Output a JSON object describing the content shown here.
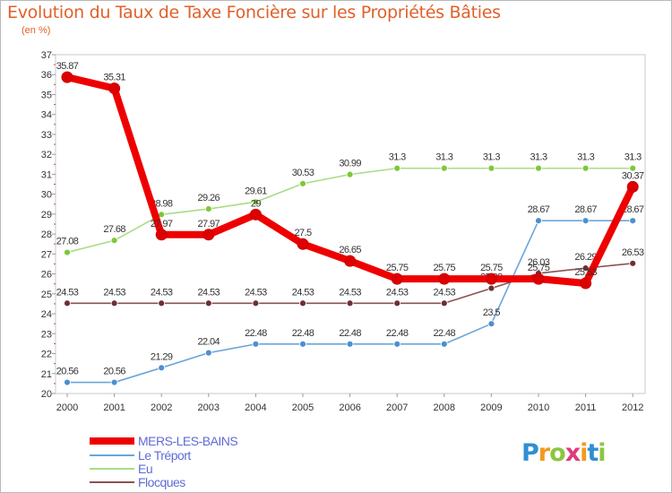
{
  "title": "Evolution du Taux de Taxe Foncière sur les Propriétés Bâties",
  "unit_label": "(en %)",
  "logo": {
    "letters": [
      "P",
      "r",
      "o",
      "x",
      "i",
      "t",
      "i"
    ],
    "colors": [
      "#2f8fd1",
      "#f29a1f",
      "#8cc63f",
      "#e13b7a",
      "#f29a1f",
      "#2f8fd1",
      "#8cc63f"
    ]
  },
  "chart_data": {
    "type": "line",
    "title": "Evolution du Taux de Taxe Foncière sur les Propriétés Bâties",
    "ylabel": "(en %)",
    "xlabel": "",
    "x": [
      "2000",
      "2001",
      "2002",
      "2003",
      "2004",
      "2005",
      "2006",
      "2007",
      "2008",
      "2009",
      "2010",
      "2011",
      "2012"
    ],
    "ylim": [
      20,
      37
    ],
    "yticks": [
      "20",
      "21",
      "22",
      "23",
      "24",
      "25",
      "26",
      "27",
      "28",
      "29",
      "30",
      "31",
      "32",
      "33",
      "34",
      "35",
      "36",
      "37"
    ],
    "grid": false,
    "series": [
      {
        "name": "Le Tréport",
        "color": "#6aa6d8",
        "marker": "#4c8fd0",
        "values": [
          20.56,
          20.56,
          21.29,
          22.04,
          22.48,
          22.48,
          22.48,
          22.48,
          22.48,
          23.5,
          28.67,
          28.67,
          28.67
        ],
        "labels": [
          "20.56",
          "20.56",
          "21.29",
          "22.04",
          "22.48",
          "22.48",
          "22.48",
          "22.48",
          "22.48",
          "23.5",
          "28.67",
          "28.67",
          "28.67"
        ]
      },
      {
        "name": "Eu",
        "color": "#a8dd85",
        "marker": "#7ec73a",
        "values": [
          27.08,
          27.68,
          28.98,
          29.26,
          29.61,
          30.53,
          30.99,
          31.3,
          31.3,
          31.3,
          31.3,
          31.3,
          31.3
        ],
        "labels": [
          "27.08",
          "27.68",
          "28.98",
          "29.26",
          "29.61",
          "30.53",
          "30.99",
          "31.3",
          "31.3",
          "31.3",
          "31.3",
          "31.3",
          "31.3"
        ]
      },
      {
        "name": "Flocques",
        "color": "#8a5050",
        "marker": "#6e2f2f",
        "values": [
          24.53,
          24.53,
          24.53,
          24.53,
          24.53,
          24.53,
          24.53,
          24.53,
          24.53,
          25.28,
          26.03,
          26.29,
          26.53
        ],
        "labels": [
          "24.53",
          "24.53",
          "24.53",
          "24.53",
          "24.53",
          "24.53",
          "24.53",
          "24.53",
          "24.53",
          "25.28",
          "26.03",
          "26.29",
          "26.53"
        ]
      },
      {
        "name": "MERS-LES-BAINS",
        "color": "#ee0000",
        "marker": "#dd0000",
        "values": [
          35.87,
          35.31,
          27.97,
          27.97,
          28.98,
          27.5,
          26.65,
          25.75,
          25.75,
          25.75,
          25.75,
          25.53,
          30.37
        ],
        "labels": [
          "35.87",
          "35.31",
          "27.97",
          "27.97",
          "29",
          "27.5",
          "26.65",
          "25.75",
          "25.75",
          "25.75",
          "25.75",
          "25.53",
          "30.37"
        ]
      }
    ],
    "legend": [
      "MERS-LES-BAINS",
      "Le Tréport",
      "Eu",
      "Flocques"
    ],
    "legend_colors": [
      "#ee0000",
      "#6aa6d8",
      "#a8dd85",
      "#8a5050"
    ],
    "legend_position": "bottom-left"
  }
}
